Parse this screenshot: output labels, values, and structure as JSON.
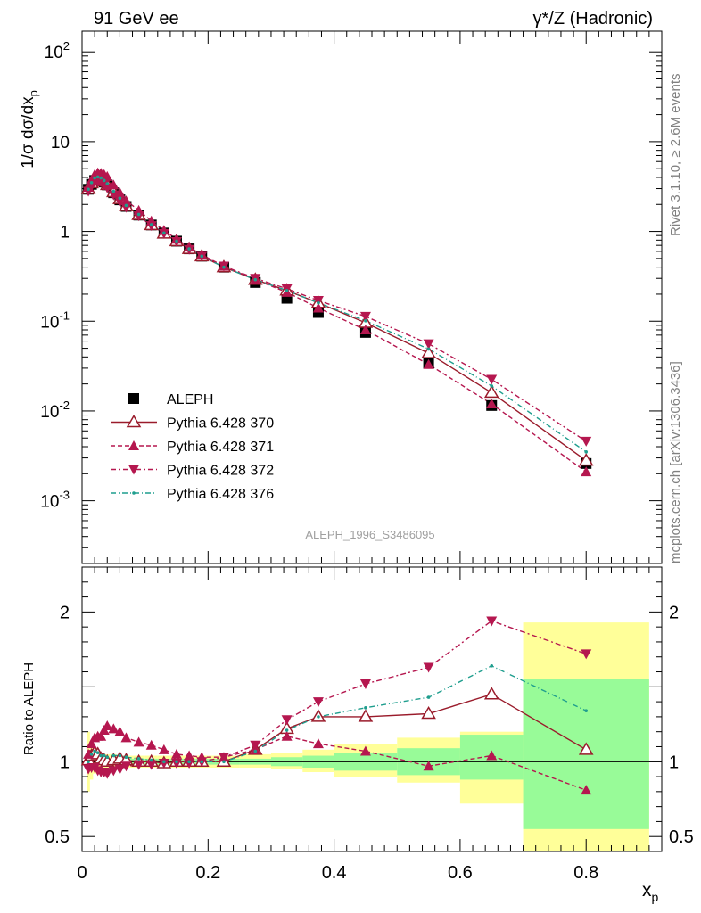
{
  "header": {
    "left": "91 GeV ee",
    "right": "γ*/Z (Hadronic)"
  },
  "side_labels": {
    "rivet": "Rivet 3.1.10, ≥ 2.6M events",
    "mcplots": "mcplots.cern.ch [arXiv:1306.3436]"
  },
  "analysis_id": "ALEPH_1996_S3486095",
  "colors": {
    "data": "#000000",
    "p370": "#9a1b2b",
    "p371": "#b5174f",
    "p372": "#b5174f",
    "p376": "#1f9e8e",
    "band_inner": "#98fb98",
    "band_outer": "#ffff99"
  },
  "chart_data": [
    {
      "type": "scatter",
      "title": "",
      "xlabel": "x_p",
      "ylabel": "1/σ dσ/dx_p",
      "yscale": "log",
      "ylim": [
        0.0002,
        170
      ],
      "xlim": [
        0,
        0.92
      ],
      "yticks": [
        "10^-3",
        "10^-2",
        "10^-1",
        "1",
        "10",
        "10^2"
      ],
      "legend_position": "bottom-left",
      "x": [
        0.01,
        0.015,
        0.02,
        0.025,
        0.03,
        0.035,
        0.04,
        0.05,
        0.06,
        0.07,
        0.09,
        0.11,
        0.13,
        0.15,
        0.17,
        0.19,
        0.225,
        0.275,
        0.325,
        0.375,
        0.45,
        0.55,
        0.65,
        0.8
      ],
      "series": [
        {
          "name": "ALEPH",
          "marker": "square",
          "values": [
            2.95,
            3.35,
            3.7,
            3.85,
            3.8,
            3.55,
            3.3,
            2.7,
            2.25,
            1.9,
            1.52,
            1.18,
            0.96,
            0.78,
            0.64,
            0.53,
            0.4,
            0.27,
            0.18,
            0.125,
            0.075,
            0.034,
            0.0115,
            0.0026
          ]
        },
        {
          "name": "Pythia 6.428 370",
          "marker": "open-triangle",
          "values": [
            2.98,
            3.45,
            3.85,
            3.95,
            3.85,
            3.6,
            3.3,
            2.75,
            2.3,
            1.92,
            1.53,
            1.18,
            0.95,
            0.78,
            0.64,
            0.53,
            0.4,
            0.29,
            0.22,
            0.16,
            0.096,
            0.044,
            0.016,
            0.0028
          ]
        },
        {
          "name": "Pythia 6.428 371",
          "marker": "triangle-up",
          "values": [
            3.1,
            3.75,
            4.3,
            4.5,
            4.45,
            4.3,
            4.1,
            3.3,
            2.7,
            2.2,
            1.72,
            1.31,
            1.03,
            0.82,
            0.67,
            0.55,
            0.41,
            0.29,
            0.21,
            0.14,
            0.08,
            0.033,
            0.012,
            0.0021
          ]
        },
        {
          "name": "Pythia 6.428 372",
          "marker": "triangle-down",
          "values": [
            2.8,
            3.2,
            3.55,
            3.6,
            3.55,
            3.3,
            3.05,
            2.55,
            2.15,
            1.85,
            1.49,
            1.16,
            0.95,
            0.77,
            0.63,
            0.53,
            0.41,
            0.3,
            0.23,
            0.17,
            0.113,
            0.056,
            0.0225,
            0.0046
          ]
        },
        {
          "name": "Pythia 6.428 376",
          "marker": "dot",
          "values": [
            2.95,
            3.5,
            3.95,
            4.05,
            3.95,
            3.7,
            3.4,
            2.8,
            2.35,
            1.95,
            1.55,
            1.19,
            0.96,
            0.78,
            0.64,
            0.53,
            0.4,
            0.29,
            0.22,
            0.16,
            0.101,
            0.049,
            0.019,
            0.0035
          ]
        }
      ]
    },
    {
      "type": "line",
      "title": "",
      "xlabel": "x_p",
      "ylabel": "Ratio to ALEPH",
      "ylim": [
        0.4,
        2.3
      ],
      "xlim": [
        0,
        0.92
      ],
      "yticks": [
        0.5,
        1,
        2
      ],
      "xticks": [
        "0",
        "0.2",
        "0.4",
        "0.6",
        "0.8"
      ],
      "x": [
        0.01,
        0.015,
        0.02,
        0.025,
        0.03,
        0.035,
        0.04,
        0.05,
        0.06,
        0.07,
        0.09,
        0.11,
        0.13,
        0.15,
        0.17,
        0.19,
        0.225,
        0.275,
        0.325,
        0.375,
        0.45,
        0.55,
        0.65,
        0.8
      ],
      "series": [
        {
          "name": "Pythia 6.428 370",
          "marker": "open-triangle",
          "values": [
            1.01,
            1.04,
            1.06,
            1.05,
            1.02,
            1.01,
            1.0,
            1.01,
            1.02,
            1.01,
            1.0,
            1.0,
            0.99,
            1.0,
            1.0,
            1.0,
            1.0,
            1.08,
            1.22,
            1.3,
            1.3,
            1.32,
            1.45,
            1.08
          ]
        },
        {
          "name": "Pythia 6.428 371",
          "marker": "triangle-up",
          "values": [
            1.05,
            1.12,
            1.16,
            1.17,
            1.17,
            1.21,
            1.24,
            1.22,
            1.2,
            1.16,
            1.13,
            1.11,
            1.08,
            1.05,
            1.04,
            1.03,
            1.03,
            1.08,
            1.17,
            1.12,
            1.07,
            0.97,
            1.04,
            0.81
          ]
        },
        {
          "name": "Pythia 6.428 372",
          "marker": "triangle-down",
          "values": [
            0.95,
            0.96,
            0.96,
            0.94,
            0.93,
            0.93,
            0.92,
            0.94,
            0.95,
            0.97,
            0.98,
            0.98,
            0.99,
            0.99,
            0.99,
            1.0,
            1.03,
            1.11,
            1.28,
            1.4,
            1.52,
            1.63,
            1.94,
            1.72
          ]
        },
        {
          "name": "Pythia 6.428 376",
          "marker": "dot",
          "values": [
            1.0,
            1.05,
            1.07,
            1.06,
            1.04,
            1.04,
            1.03,
            1.04,
            1.04,
            1.03,
            1.02,
            1.01,
            1.0,
            1.0,
            1.0,
            1.0,
            1.0,
            1.07,
            1.21,
            1.3,
            1.36,
            1.43,
            1.64,
            1.34
          ]
        }
      ],
      "band": {
        "x_edges": [
          0.0075,
          0.0125,
          0.0175,
          0.0225,
          0.0275,
          0.0325,
          0.0375,
          0.045,
          0.055,
          0.065,
          0.08,
          0.1,
          0.12,
          0.14,
          0.16,
          0.18,
          0.2,
          0.25,
          0.3,
          0.35,
          0.4,
          0.5,
          0.6,
          0.7,
          0.9
        ],
        "inner_low": [
          0.95,
          0.97,
          0.98,
          0.98,
          0.98,
          0.98,
          0.98,
          0.98,
          0.98,
          0.98,
          0.98,
          0.98,
          0.98,
          0.98,
          0.98,
          0.98,
          0.98,
          0.98,
          0.97,
          0.96,
          0.94,
          0.91,
          0.88,
          0.55
        ],
        "inner_high": [
          1.05,
          1.03,
          1.02,
          1.02,
          1.02,
          1.02,
          1.02,
          1.02,
          1.02,
          1.02,
          1.02,
          1.02,
          1.02,
          1.02,
          1.02,
          1.02,
          1.02,
          1.02,
          1.03,
          1.04,
          1.06,
          1.09,
          1.18,
          1.55
        ],
        "outer_low": [
          0.8,
          0.88,
          0.92,
          0.93,
          0.94,
          0.95,
          0.95,
          0.95,
          0.96,
          0.96,
          0.96,
          0.96,
          0.96,
          0.96,
          0.96,
          0.96,
          0.96,
          0.96,
          0.95,
          0.93,
          0.9,
          0.86,
          0.72,
          0.4
        ],
        "outer_high": [
          1.2,
          1.12,
          1.08,
          1.07,
          1.06,
          1.05,
          1.05,
          1.05,
          1.04,
          1.04,
          1.04,
          1.04,
          1.04,
          1.04,
          1.04,
          1.04,
          1.04,
          1.05,
          1.06,
          1.08,
          1.12,
          1.16,
          1.2,
          1.93
        ]
      }
    }
  ]
}
